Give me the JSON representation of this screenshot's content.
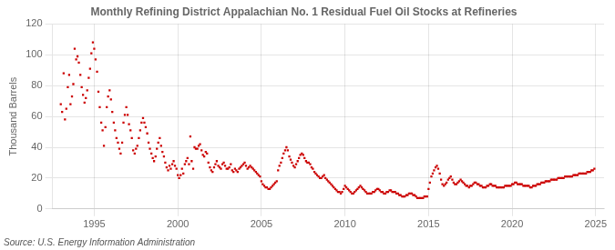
{
  "chart_data": {
    "type": "scatter",
    "title": "Monthly Refining District Appalachian No. 1 Residual Fuel Oil Stocks at Refineries",
    "ylabel": "Thousand Barrels",
    "annotation": "Source: U.S. Energy Information Administration",
    "color": "#cc0000",
    "marker": "square",
    "grid": true,
    "xlim": [
      1992.5,
      2025.5
    ],
    "xticks": [
      1995,
      2000,
      2005,
      2010,
      2015,
      2020,
      2025
    ],
    "ylim": [
      0,
      120
    ],
    "yticks": [
      0,
      20,
      40,
      60,
      80,
      100,
      120
    ],
    "x": [
      1993.0,
      1993.08,
      1993.17,
      1993.25,
      1993.33,
      1993.42,
      1993.5,
      1993.58,
      1993.67,
      1993.75,
      1993.83,
      1993.92,
      1994.0,
      1994.08,
      1994.17,
      1994.25,
      1994.33,
      1994.42,
      1994.5,
      1994.58,
      1994.67,
      1994.75,
      1994.83,
      1994.92,
      1995.0,
      1995.08,
      1995.17,
      1995.25,
      1995.33,
      1995.42,
      1995.5,
      1995.58,
      1995.67,
      1995.75,
      1995.83,
      1995.92,
      1996.0,
      1996.08,
      1996.17,
      1996.25,
      1996.33,
      1996.42,
      1996.5,
      1996.58,
      1996.67,
      1996.75,
      1996.83,
      1996.92,
      1997.0,
      1997.08,
      1997.17,
      1997.25,
      1997.33,
      1997.42,
      1997.5,
      1997.58,
      1997.67,
      1997.75,
      1997.83,
      1997.92,
      1998.0,
      1998.08,
      1998.17,
      1998.25,
      1998.33,
      1998.42,
      1998.5,
      1998.58,
      1998.67,
      1998.75,
      1998.83,
      1998.92,
      1999.0,
      1999.08,
      1999.17,
      1999.25,
      1999.33,
      1999.42,
      1999.5,
      1999.58,
      1999.67,
      1999.75,
      1999.83,
      1999.92,
      2000.0,
      2000.08,
      2000.17,
      2000.25,
      2000.33,
      2000.42,
      2000.5,
      2000.58,
      2000.67,
      2000.75,
      2000.83,
      2000.92,
      2001.0,
      2001.08,
      2001.17,
      2001.25,
      2001.33,
      2001.42,
      2001.5,
      2001.58,
      2001.67,
      2001.75,
      2001.83,
      2001.92,
      2002.0,
      2002.08,
      2002.17,
      2002.25,
      2002.33,
      2002.42,
      2002.5,
      2002.58,
      2002.67,
      2002.75,
      2002.83,
      2002.92,
      2003.0,
      2003.08,
      2003.17,
      2003.25,
      2003.33,
      2003.42,
      2003.5,
      2003.58,
      2003.67,
      2003.75,
      2003.83,
      2003.92,
      2004.0,
      2004.08,
      2004.17,
      2004.25,
      2004.33,
      2004.42,
      2004.5,
      2004.58,
      2004.67,
      2004.75,
      2004.83,
      2004.92,
      2005.0,
      2005.08,
      2005.17,
      2005.25,
      2005.33,
      2005.42,
      2005.5,
      2005.58,
      2005.67,
      2005.75,
      2005.83,
      2005.92,
      2006.0,
      2006.08,
      2006.17,
      2006.25,
      2006.33,
      2006.42,
      2006.5,
      2006.58,
      2006.67,
      2006.75,
      2006.83,
      2006.92,
      2007.0,
      2007.08,
      2007.17,
      2007.25,
      2007.33,
      2007.42,
      2007.5,
      2007.58,
      2007.67,
      2007.75,
      2007.83,
      2007.92,
      2008.0,
      2008.08,
      2008.17,
      2008.25,
      2008.33,
      2008.42,
      2008.5,
      2008.58,
      2008.67,
      2008.75,
      2008.83,
      2008.92,
      2009.0,
      2009.08,
      2009.17,
      2009.25,
      2009.33,
      2009.42,
      2009.5,
      2009.58,
      2009.67,
      2009.75,
      2009.83,
      2009.92,
      2010.0,
      2010.08,
      2010.17,
      2010.25,
      2010.33,
      2010.42,
      2010.5,
      2010.58,
      2010.67,
      2010.75,
      2010.83,
      2010.92,
      2011.0,
      2011.08,
      2011.17,
      2011.25,
      2011.33,
      2011.42,
      2011.5,
      2011.58,
      2011.67,
      2011.75,
      2011.83,
      2011.92,
      2012.0,
      2012.08,
      2012.17,
      2012.25,
      2012.33,
      2012.42,
      2012.5,
      2012.58,
      2012.67,
      2012.75,
      2012.83,
      2012.92,
      2013.0,
      2013.08,
      2013.17,
      2013.25,
      2013.33,
      2013.42,
      2013.5,
      2013.58,
      2013.67,
      2013.75,
      2013.83,
      2013.92,
      2014.0,
      2014.08,
      2014.17,
      2014.25,
      2014.33,
      2014.42,
      2014.5,
      2014.58,
      2014.67,
      2014.75,
      2014.83,
      2014.92,
      2015.0,
      2015.08,
      2015.17,
      2015.25,
      2015.33,
      2015.42,
      2015.5,
      2015.58,
      2015.67,
      2015.75,
      2015.83,
      2015.92,
      2016.0,
      2016.08,
      2016.17,
      2016.25,
      2016.33,
      2016.42,
      2016.5,
      2016.58,
      2016.67,
      2016.75,
      2016.83,
      2016.92,
      2017.0,
      2017.08,
      2017.17,
      2017.25,
      2017.33,
      2017.42,
      2017.5,
      2017.58,
      2017.67,
      2017.75,
      2017.83,
      2017.92,
      2018.0,
      2018.08,
      2018.17,
      2018.25,
      2018.33,
      2018.42,
      2018.5,
      2018.58,
      2018.67,
      2018.75,
      2018.83,
      2018.92,
      2019.0,
      2019.08,
      2019.17,
      2019.25,
      2019.33,
      2019.42,
      2019.5,
      2019.58,
      2019.67,
      2019.75,
      2019.83,
      2019.92,
      2020.0,
      2020.08,
      2020.17,
      2020.25,
      2020.33,
      2020.42,
      2020.5,
      2020.58,
      2020.67,
      2020.75,
      2020.83,
      2020.92,
      2021.0,
      2021.08,
      2021.17,
      2021.25,
      2021.33,
      2021.42,
      2021.5,
      2021.58,
      2021.67,
      2021.75,
      2021.83,
      2021.92,
      2022.0,
      2022.08,
      2022.17,
      2022.25,
      2022.33,
      2022.42,
      2022.5,
      2022.58,
      2022.67,
      2022.75,
      2022.83,
      2022.92,
      2023.0,
      2023.08,
      2023.17,
      2023.25,
      2023.33,
      2023.42,
      2023.5,
      2023.58,
      2023.67,
      2023.75,
      2023.83,
      2023.92,
      2024.0,
      2024.08,
      2024.17,
      2024.25,
      2024.33,
      2024.42,
      2024.5,
      2024.58,
      2024.67,
      2024.75,
      2024.83,
      2024.92
    ],
    "values": [
      68,
      63,
      88,
      58,
      65,
      79,
      87,
      68,
      73,
      81,
      104,
      97,
      99,
      95,
      87,
      79,
      74,
      69,
      72,
      77,
      85,
      91,
      101,
      108,
      104,
      97,
      89,
      76,
      66,
      56,
      51,
      41,
      53,
      66,
      73,
      77,
      71,
      63,
      56,
      51,
      46,
      43,
      39,
      36,
      43,
      56,
      61,
      66,
      61,
      55,
      51,
      46,
      38,
      36,
      39,
      41,
      46,
      51,
      56,
      59,
      56,
      53,
      49,
      43,
      39,
      36,
      33,
      31,
      34,
      39,
      43,
      46,
      41,
      37,
      34,
      30,
      27,
      25,
      28,
      26,
      29,
      31,
      28,
      26,
      22,
      20,
      22,
      26,
      23,
      29,
      31,
      33,
      29,
      47,
      31,
      26,
      40,
      39,
      39,
      41,
      42,
      38,
      35,
      34,
      37,
      36,
      30,
      27,
      25,
      24,
      27,
      29,
      31,
      28,
      27,
      26,
      29,
      30,
      28,
      26,
      26,
      27,
      29,
      25,
      24,
      26,
      25,
      24,
      26,
      27,
      28,
      29,
      30,
      28,
      26,
      27,
      28,
      27,
      26,
      25,
      24,
      23,
      22,
      21,
      18,
      16,
      15,
      14,
      14,
      13,
      13,
      14,
      15,
      16,
      17,
      18,
      25,
      28,
      30,
      33,
      36,
      38,
      40,
      38,
      34,
      32,
      30,
      28,
      27,
      29,
      31,
      33,
      35,
      36,
      35,
      33,
      31,
      30,
      30,
      29,
      27,
      26,
      24,
      23,
      22,
      21,
      20,
      20,
      21,
      22,
      20,
      19,
      18,
      17,
      16,
      15,
      14,
      13,
      12,
      11,
      11,
      10,
      11,
      13,
      15,
      14,
      13,
      12,
      11,
      10,
      10,
      11,
      12,
      13,
      14,
      15,
      14,
      13,
      12,
      11,
      10,
      10,
      10,
      10,
      11,
      11,
      12,
      13,
      13,
      12,
      11,
      11,
      10,
      10,
      11,
      11,
      12,
      12,
      11,
      11,
      11,
      10,
      10,
      9,
      9,
      8,
      8,
      8,
      9,
      9,
      10,
      10,
      10,
      9,
      9,
      8,
      7,
      7,
      7,
      7,
      7,
      8,
      8,
      8,
      13,
      17,
      21,
      23,
      25,
      27,
      28,
      26,
      23,
      19,
      16,
      15,
      16,
      17,
      19,
      20,
      21,
      19,
      17,
      16,
      16,
      17,
      18,
      19,
      18,
      17,
      16,
      15,
      15,
      14,
      15,
      15,
      16,
      17,
      17,
      16,
      16,
      15,
      15,
      14,
      14,
      14,
      15,
      15,
      16,
      16,
      15,
      15,
      15,
      14,
      14,
      14,
      14,
      14,
      14,
      15,
      15,
      15,
      15,
      15,
      16,
      16,
      17,
      17,
      16,
      16,
      16,
      16,
      15,
      15,
      15,
      15,
      15,
      14,
      14,
      15,
      15,
      15,
      16,
      16,
      16,
      17,
      17,
      17,
      18,
      18,
      18,
      18,
      19,
      19,
      19,
      19,
      19,
      20,
      20,
      20,
      20,
      20,
      21,
      21,
      21,
      21,
      21,
      21,
      22,
      22,
      22,
      22,
      23,
      23,
      23,
      23,
      23,
      23,
      24,
      24,
      24,
      25,
      25,
      26
    ]
  }
}
